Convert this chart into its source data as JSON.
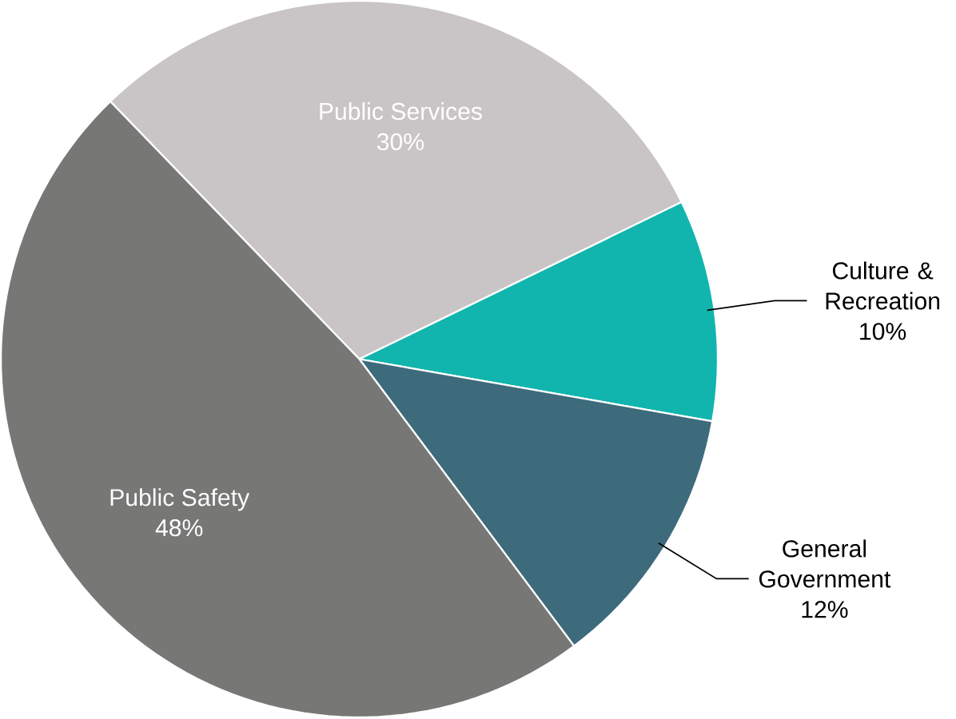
{
  "chart_data": {
    "type": "pie",
    "categories": [
      "Public Services",
      "Culture & Recreation",
      "General Government",
      "Public Safety"
    ],
    "values": [
      30,
      10,
      12,
      48
    ],
    "value_labels": [
      "30%",
      "10%",
      "12%",
      "48%"
    ],
    "colors": [
      "#c9c5c7",
      "#12b5ad",
      "#3e6b7c",
      "#777776"
    ]
  }
}
